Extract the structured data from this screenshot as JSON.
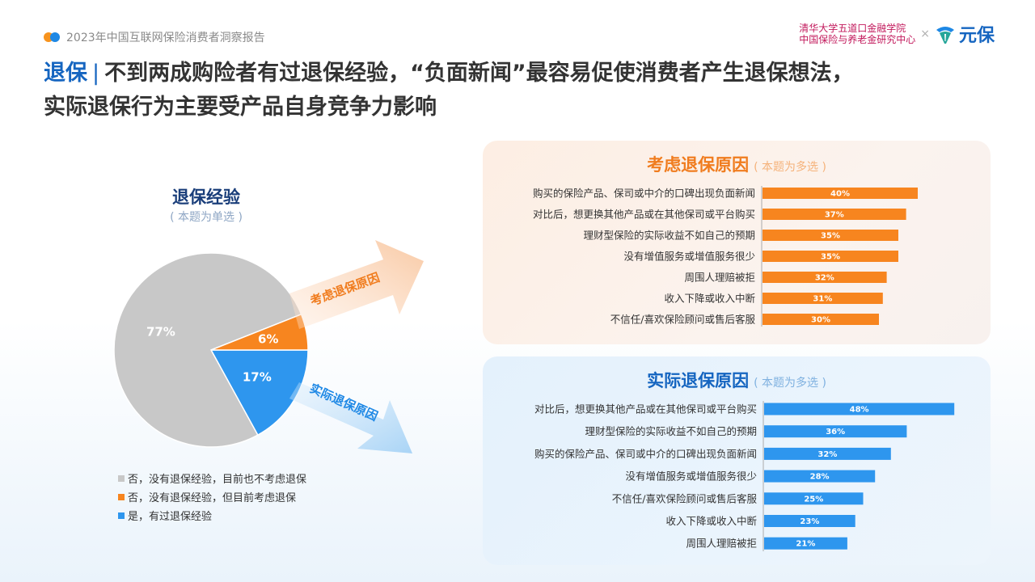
{
  "header": {
    "report_title": "2023年中国互联网保险消费者洞察报告",
    "institution_line1": "清华大学五道口金融学院",
    "institution_line2": "中国保险与养老金研究中心",
    "times_sign": "×",
    "brand_name": "元保"
  },
  "headline": {
    "tag": "退保",
    "separator": "|",
    "line1": "不到两成购险者有过退保经验，“负面新闻”最容易促使消费者产生退保想法，",
    "line2": "实际退保行为主要受产品自身竞争力影响"
  },
  "arrows": {
    "upper_label": "考虑退保原因",
    "lower_label": "实际退保原因"
  },
  "chart_data": [
    {
      "type": "pie",
      "title": "退保经验",
      "subtitle": "( 本题为单选 )",
      "slices": [
        {
          "label": "否，没有退保经验，目前也不考虑退保",
          "value": 77,
          "display": "77%",
          "color": "#c8c8c8"
        },
        {
          "label": "否，没有退保经验，但目前考虑退保",
          "value": 6,
          "display": "6%",
          "color": "#f7851f"
        },
        {
          "label": "是，有过退保经验",
          "value": 17,
          "display": "17%",
          "color": "#2e96ee"
        }
      ]
    },
    {
      "type": "bar",
      "orientation": "horizontal",
      "title": "考虑退保原因",
      "subtitle": "( 本题为多选 )",
      "color": "#f7851f",
      "unit": "%",
      "categories": [
        "购买的保险产品、保司或中介的口碑出现负面新闻",
        "对比后，想更换其他产品或在其他保司或平台购买",
        "理财型保险的实际收益不如自己的预期",
        "没有增值服务或增值服务很少",
        "周围人理赔被拒",
        "收入下降或收入中断",
        "不信任/喜欢保险顾问或售后客服"
      ],
      "values": [
        40,
        37,
        35,
        35,
        32,
        31,
        30
      ]
    },
    {
      "type": "bar",
      "orientation": "horizontal",
      "title": "实际退保原因",
      "subtitle": "( 本题为多选 )",
      "color": "#2e96ee",
      "unit": "%",
      "categories": [
        "对比后，想更换其他产品或在其他保司或平台购买",
        "理财型保险的实际收益不如自己的预期",
        "购买的保险产品、保司或中介的口碑出现负面新闻",
        "没有增值服务或增值服务很少",
        "不信任/喜欢保险顾问或售后客服",
        "收入下降或收入中断",
        "周围人理赔被拒"
      ],
      "values": [
        48,
        36,
        32,
        28,
        25,
        23,
        21
      ]
    }
  ]
}
